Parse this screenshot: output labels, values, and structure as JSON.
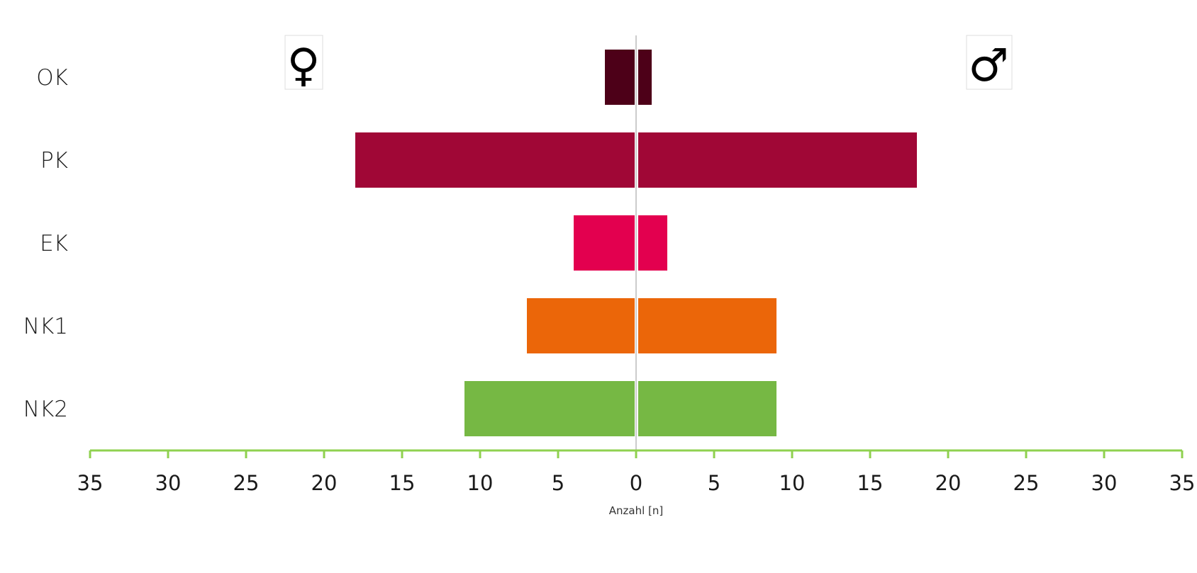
{
  "chart_data": {
    "type": "bar",
    "orientation": "horizontal",
    "layout": "diverging (population pyramid)",
    "categories": [
      "OK",
      "PK",
      "EK",
      "NK1",
      "NK2"
    ],
    "series": [
      {
        "name": "♀",
        "side": "left",
        "values": [
          2,
          18,
          4,
          7,
          11
        ]
      },
      {
        "name": "♂",
        "side": "right",
        "values": [
          1,
          18,
          2,
          9,
          9
        ]
      }
    ],
    "category_colors": [
      "#4d0018",
      "#a00736",
      "#e3004f",
      "#eb6609",
      "#76b844"
    ],
    "axis_color": "#8fd14f",
    "center_line_color": "#cccccc",
    "xlim": [
      -35,
      35
    ],
    "xticks": [
      35,
      30,
      25,
      20,
      15,
      10,
      5,
      0,
      5,
      10,
      15,
      20,
      25,
      30,
      35
    ],
    "xlabel": "Anzahl [n]",
    "ylabel": "",
    "title": "",
    "grid": false,
    "legend_symbols": {
      "female": "♀",
      "male": "♂"
    }
  }
}
